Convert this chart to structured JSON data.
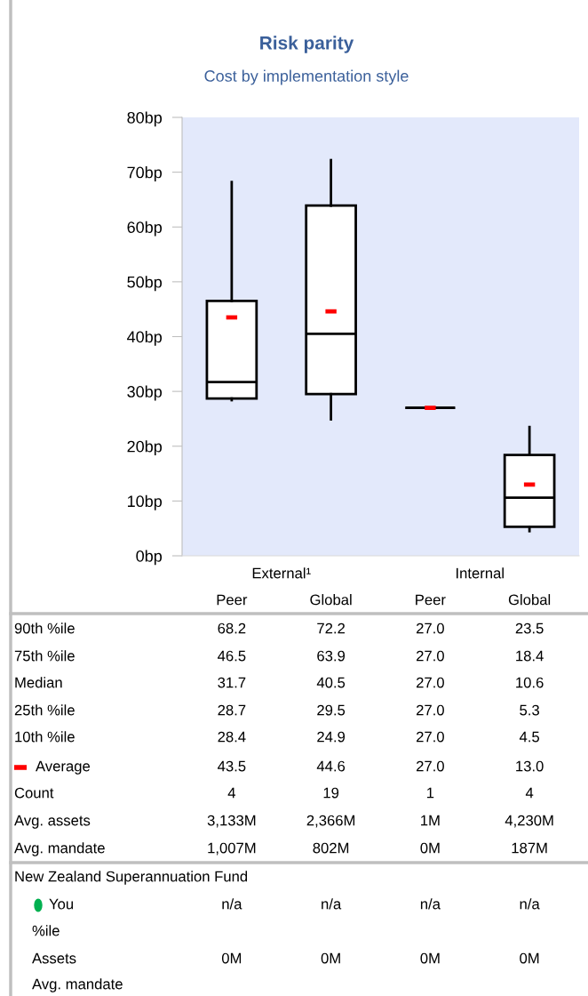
{
  "chart_data": {
    "type": "box",
    "title": "Risk parity",
    "subtitle": "Cost by implementation style",
    "categories": [
      "Peer",
      "Global",
      "Peer",
      "Global"
    ],
    "boxes": [
      {
        "low": 28.4,
        "q1": 28.7,
        "median": 31.7,
        "q3": 46.5,
        "high": 68.2
      },
      {
        "low": 24.9,
        "q1": 29.5,
        "median": 40.5,
        "q3": 63.9,
        "high": 72.2
      },
      {
        "low": 27.0,
        "q1": 27.0,
        "median": 27.0,
        "q3": 27.0,
        "high": 27.0
      },
      {
        "low": 4.5,
        "q1": 5.3,
        "median": 10.6,
        "q3": 18.4,
        "high": 23.5
      }
    ],
    "color": "#000000",
    "series": [
      {
        "type": "scatter",
        "name": "Average",
        "color": "#ff0000",
        "values": [
          43.5,
          44.6,
          27.0,
          13.0
        ]
      }
    ],
    "ylim": [
      0,
      80
    ],
    "yticks": [
      {
        "value": 0,
        "label": "0bp"
      },
      {
        "value": 10,
        "label": "10bp"
      },
      {
        "value": 20,
        "label": "20bp"
      },
      {
        "value": 30,
        "label": "30bp"
      },
      {
        "value": 40,
        "label": "40bp"
      },
      {
        "value": 50,
        "label": "50bp"
      },
      {
        "value": 60,
        "label": "60bp"
      },
      {
        "value": 70,
        "label": "70bp"
      },
      {
        "value": 80,
        "label": "80bp"
      }
    ],
    "grid": false,
    "annotations": [
      "External¹",
      "Internal",
      "90th %ile",
      "68.2",
      "72.2",
      "27.0",
      "23.5",
      "75th %ile",
      "46.5",
      "63.9",
      "27.0",
      "18.4",
      "Median",
      "31.7",
      "40.5",
      "27.0",
      "10.6",
      "25th %ile",
      "28.7",
      "29.5",
      "27.0",
      "5.3",
      "10th %ile",
      "28.4",
      "24.9",
      "27.0",
      "4.5",
      "43.5",
      "44.6",
      "27.0",
      "13.0",
      "Count",
      "4",
      "19",
      "1",
      "4",
      "Avg. assets",
      "3,133M",
      "2,366M",
      "1M",
      "4,230M",
      "Avg. mandate",
      "1,007M",
      "802M",
      "0M",
      "187M",
      "New Zealand Superannuation Fund",
      "You",
      "n/a",
      "n/a",
      "n/a",
      "n/a",
      "%ile",
      "Assets",
      "0M",
      "0M",
      "0M",
      "0M",
      "Avg. mandate"
    ]
  }
}
